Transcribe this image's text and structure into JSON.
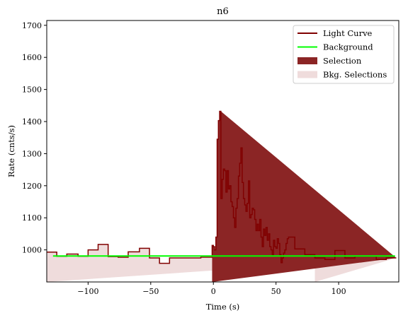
{
  "chart_data": {
    "type": "line",
    "title": "n6",
    "xlabel": "Time (s)",
    "ylabel": "Rate (cnts/s)",
    "xlim": [
      -133,
      148
    ],
    "ylim": [
      900,
      1715
    ],
    "xticks": [
      -100,
      -50,
      0,
      50,
      100
    ],
    "xtick_labels": [
      "−100",
      "−50",
      "0",
      "50",
      "100"
    ],
    "yticks": [
      1000,
      1100,
      1200,
      1300,
      1400,
      1500,
      1600,
      1700
    ],
    "ytick_labels": [
      "1000",
      "1100",
      "1200",
      "1300",
      "1400",
      "1500",
      "1600",
      "1700"
    ],
    "grid": false,
    "legend_position": "top-right",
    "legend": [
      {
        "label": "Light Curve",
        "kind": "line",
        "color": "#800000"
      },
      {
        "label": "Background",
        "kind": "line",
        "color": "#00ff00"
      },
      {
        "label": "Selection",
        "kind": "patch",
        "color": "#8b2525"
      },
      {
        "label": "Bkg. Selections",
        "kind": "patch",
        "color": "#efdcdc"
      }
    ],
    "light_curve": {
      "name": "Light Curve",
      "color": "#800000",
      "step_edges": [
        -133,
        -125,
        -117,
        -108,
        -100,
        -92,
        -84,
        -76,
        -68,
        -59,
        -51,
        -43,
        -35,
        -27,
        -19,
        -10,
        -1,
        0,
        1,
        2,
        3,
        4,
        5,
        6,
        7,
        8,
        9,
        10,
        11,
        12,
        13,
        14,
        15,
        16,
        17,
        18,
        19,
        20,
        21,
        22,
        23,
        24,
        25,
        26,
        27,
        28,
        29,
        30,
        31,
        32,
        33,
        34,
        35,
        36,
        37,
        38,
        39,
        40,
        41,
        42,
        43,
        44,
        45,
        46,
        47,
        48,
        49,
        50,
        51,
        52,
        53,
        54,
        55,
        56,
        57,
        58,
        59,
        60,
        61,
        65,
        73,
        81,
        89,
        97,
        105,
        113,
        121,
        130,
        138,
        146
      ],
      "step_values": [
        993,
        980,
        987,
        980,
        1000,
        1017,
        979,
        977,
        994,
        1005,
        975,
        958,
        975,
        975,
        975,
        977,
        1014,
        1010,
        1000,
        1040,
        1345,
        1403,
        1432,
        1160,
        1220,
        1252,
        1247,
        1180,
        1247,
        1190,
        1200,
        1150,
        1135,
        1100,
        1070,
        1130,
        1160,
        1230,
        1270,
        1318,
        1210,
        1160,
        1140,
        1120,
        1145,
        1215,
        1100,
        1110,
        1130,
        1125,
        1095,
        1060,
        1080,
        1060,
        1095,
        1040,
        1010,
        1065,
        1045,
        1070,
        1030,
        1050,
        1010,
        1000,
        985,
        1030,
        1010,
        1005,
        1035,
        1020,
        985,
        960,
        975,
        990,
        1000,
        1020,
        1035,
        1040,
        1040,
        1003,
        985,
        975,
        970,
        998,
        975,
        980,
        980,
        970,
        975,
        975
      ]
    },
    "background": {
      "name": "Background",
      "color": "#00ff00",
      "x": [
        -128,
        145
      ],
      "y": [
        981,
        981
      ]
    },
    "selection": {
      "name": "Selection",
      "x_range": [
        -1,
        6
      ],
      "color": "#8b2525"
    },
    "bkg_selections": [
      {
        "x_range": [
          -133,
          -17
        ]
      },
      {
        "x_range": [
          81,
          148
        ]
      }
    ]
  }
}
